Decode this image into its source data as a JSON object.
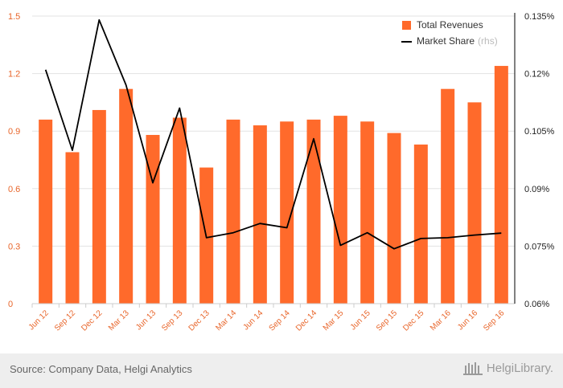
{
  "chart_data": {
    "type": "bar",
    "categories": [
      "Jun 12",
      "Sep 12",
      "Dec 12",
      "Mar 13",
      "Jun 13",
      "Sep 13",
      "Dec 13",
      "Mar 14",
      "Jun 14",
      "Sep 14",
      "Dec 14",
      "Mar 15",
      "Jun 15",
      "Sep 15",
      "Dec 15",
      "Mar 16",
      "Jun 16",
      "Sep 16"
    ],
    "series": [
      {
        "name": "Total Revenues",
        "type": "bar",
        "axis": "left",
        "color": "#ff6a2b",
        "values": [
          0.96,
          0.79,
          1.01,
          1.12,
          0.88,
          0.97,
          0.71,
          0.96,
          0.93,
          0.95,
          0.96,
          0.98,
          0.95,
          0.89,
          0.83,
          1.12,
          1.05,
          1.24
        ]
      },
      {
        "name": "Market Share",
        "type": "line",
        "axis": "right",
        "color": "#000000",
        "values": [
          0.121,
          0.1,
          0.134,
          0.117,
          0.0915,
          0.111,
          0.0772,
          0.0785,
          0.0809,
          0.0798,
          0.103,
          0.0752,
          0.0785,
          0.0743,
          0.077,
          0.0772,
          0.0779,
          0.0784
        ]
      }
    ],
    "legend": {
      "position": "top-right",
      "items": [
        {
          "label": "Total Revenues",
          "note": "",
          "marker": "square",
          "color": "#ff6a2b"
        },
        {
          "label": "Market Share",
          "note": "(rhs)",
          "marker": "line",
          "color": "#000000"
        }
      ]
    },
    "left_axis": {
      "ylim": [
        0,
        1.5
      ],
      "ticks": [
        "0",
        "0.3",
        "0.6",
        "0.9",
        "1.2",
        "1.5"
      ],
      "tick_values": [
        0,
        0.3,
        0.6,
        0.9,
        1.2,
        1.5
      ]
    },
    "right_axis": {
      "ylim": [
        0.06,
        0.135
      ],
      "ticks": [
        "0.06%",
        "0.075%",
        "0.09%",
        "0.105%",
        "0.12%",
        "0.135%"
      ],
      "tick_values": [
        0.06,
        0.075,
        0.09,
        0.105,
        0.12,
        0.135
      ]
    },
    "grid": true,
    "title": "",
    "xlabel": "",
    "ylabel": ""
  },
  "footer": {
    "source": "Source: Company Data, Helgi Analytics",
    "brand": "HelgiLibrary."
  }
}
